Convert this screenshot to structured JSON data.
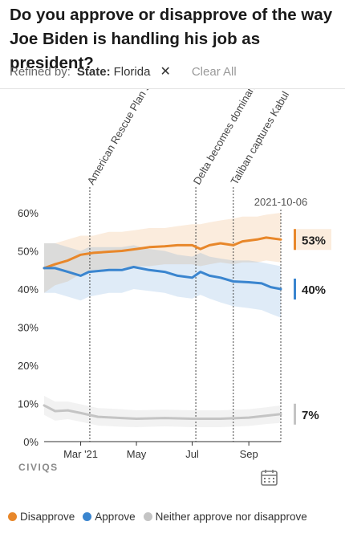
{
  "header": {
    "title": "Do you approve or disapprove of the way Joe Biden is handling his job as president?"
  },
  "filters": {
    "refined_label": "Refined by:",
    "state_key": "State:",
    "state_value": "Florida",
    "clear_all_label": "Clear All"
  },
  "branding": {
    "logo_text": "CIVIQS"
  },
  "colors": {
    "disapprove": "#e8872a",
    "approve": "#3a85cf",
    "neither": "#c4c4c4"
  },
  "chart_data": {
    "type": "line",
    "x_start": "2021-01-20",
    "x_end": "2021-10-06",
    "ylim": [
      0,
      60
    ],
    "yticks": [
      0,
      10,
      20,
      30,
      40,
      50,
      60
    ],
    "ytick_labels": [
      "0%",
      "10%",
      "20%",
      "30%",
      "40%",
      "50%",
      "60%"
    ],
    "xticks": [
      {
        "date": "2021-03-01",
        "label": "Mar '21"
      },
      {
        "date": "2021-05-01",
        "label": "May"
      },
      {
        "date": "2021-07-01",
        "label": "Jul"
      },
      {
        "date": "2021-09-01",
        "label": "Sep"
      }
    ],
    "current_date_label": "2021-10-06",
    "events": [
      {
        "date": "2021-03-11",
        "label": "American Rescue Plan signed"
      },
      {
        "date": "2021-07-05",
        "label": "Delta becomes dominant variant"
      },
      {
        "date": "2021-08-15",
        "label": "Taliban captures Kabul"
      }
    ],
    "series": [
      {
        "name": "Disapprove",
        "color": "#e8872a",
        "end_label": "53%",
        "points": [
          [
            "2021-01-20",
            45.5
          ],
          [
            "2021-02-01",
            46.5
          ],
          [
            "2021-02-15",
            47.5
          ],
          [
            "2021-03-01",
            49
          ],
          [
            "2021-03-15",
            49.5
          ],
          [
            "2021-04-01",
            49.8
          ],
          [
            "2021-04-15",
            50
          ],
          [
            "2021-05-01",
            50.5
          ],
          [
            "2021-05-15",
            51
          ],
          [
            "2021-06-01",
            51.2
          ],
          [
            "2021-06-15",
            51.5
          ],
          [
            "2021-07-01",
            51.5
          ],
          [
            "2021-07-10",
            50.5
          ],
          [
            "2021-07-20",
            51.5
          ],
          [
            "2021-08-01",
            52
          ],
          [
            "2021-08-15",
            51.5
          ],
          [
            "2021-08-25",
            52.5
          ],
          [
            "2021-09-10",
            53
          ],
          [
            "2021-09-20",
            53.5
          ],
          [
            "2021-10-06",
            53
          ]
        ],
        "band_upper": [
          52,
          52,
          53,
          54,
          54,
          55,
          55,
          55.5,
          56,
          56,
          56.5,
          57,
          57,
          57.5,
          58,
          58.5,
          59,
          59,
          59.5,
          60
        ],
        "band_lower": [
          39,
          41,
          42,
          44,
          45,
          45,
          45.5,
          46,
          46,
          46.5,
          46.5,
          46.5,
          46,
          46.5,
          47,
          46.5,
          47,
          47,
          47.5,
          47
        ]
      },
      {
        "name": "Approve",
        "color": "#3a85cf",
        "end_label": "40%",
        "points": [
          [
            "2021-01-20",
            45.5
          ],
          [
            "2021-02-01",
            45.5
          ],
          [
            "2021-02-15",
            44.5
          ],
          [
            "2021-03-01",
            43.5
          ],
          [
            "2021-03-10",
            44.5
          ],
          [
            "2021-04-01",
            45
          ],
          [
            "2021-04-15",
            45
          ],
          [
            "2021-04-28",
            45.8
          ],
          [
            "2021-05-15",
            45
          ],
          [
            "2021-06-01",
            44.5
          ],
          [
            "2021-06-15",
            43.5
          ],
          [
            "2021-07-01",
            43
          ],
          [
            "2021-07-10",
            44.5
          ],
          [
            "2021-07-20",
            43.5
          ],
          [
            "2021-08-01",
            43
          ],
          [
            "2021-08-15",
            42
          ],
          [
            "2021-09-01",
            41.8
          ],
          [
            "2021-09-15",
            41.5
          ],
          [
            "2021-09-25",
            40.5
          ],
          [
            "2021-10-06",
            40
          ]
        ],
        "band_upper": [
          52,
          52,
          51,
          50,
          51,
          51,
          51,
          51.5,
          50.5,
          50,
          49,
          48.5,
          49.5,
          48.5,
          48,
          47.5,
          47.5,
          47,
          46.5,
          46
        ],
        "band_lower": [
          39,
          39,
          38,
          37,
          38,
          39,
          39,
          40,
          39.5,
          39,
          38,
          37.5,
          38.5,
          37.5,
          36.5,
          35.5,
          35,
          34.5,
          33.5,
          32.5
        ]
      },
      {
        "name": "Neither approve nor disapprove",
        "color": "#c4c4c4",
        "end_label": "7%",
        "points": [
          [
            "2021-01-20",
            9.5
          ],
          [
            "2021-02-01",
            8
          ],
          [
            "2021-02-15",
            8.2
          ],
          [
            "2021-03-01",
            7.5
          ],
          [
            "2021-03-20",
            6.5
          ],
          [
            "2021-04-15",
            6.2
          ],
          [
            "2021-05-01",
            6
          ],
          [
            "2021-06-01",
            6.2
          ],
          [
            "2021-07-01",
            6
          ],
          [
            "2021-08-01",
            6
          ],
          [
            "2021-09-01",
            6.3
          ],
          [
            "2021-09-20",
            6.8
          ],
          [
            "2021-10-06",
            7.2
          ]
        ],
        "band_upper": [
          12,
          10.5,
          10.5,
          9.8,
          8.8,
          8.5,
          8.2,
          8.4,
          8.2,
          8.2,
          8.5,
          9,
          9.5
        ],
        "band_lower": [
          7,
          5.5,
          5.9,
          5.2,
          4.2,
          3.9,
          3.8,
          4,
          3.8,
          3.8,
          4.1,
          4.6,
          4.9
        ]
      }
    ],
    "legend_position": "bottom",
    "grid": false
  }
}
